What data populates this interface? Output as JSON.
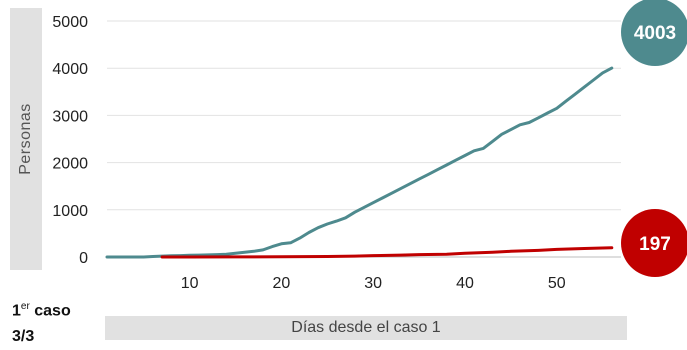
{
  "chart_data": {
    "type": "line",
    "ylabel": "Personas",
    "xlabel": "Días desde el caso 1",
    "ylim": [
      0,
      5000
    ],
    "xlim": [
      1,
      57
    ],
    "yticks": [
      "0",
      "1000",
      "2000",
      "3000",
      "4000",
      "5000"
    ],
    "xticks": [
      "10",
      "20",
      "30",
      "40",
      "50"
    ],
    "grid": "horizontal",
    "series": [
      {
        "color": "#4e8a8e",
        "end_label": "4003",
        "x": [
          1,
          2,
          3,
          4,
          5,
          6,
          7,
          8,
          9,
          10,
          11,
          12,
          13,
          14,
          15,
          16,
          17,
          18,
          19,
          20,
          21,
          22,
          23,
          24,
          25,
          26,
          27,
          28,
          29,
          30,
          31,
          32,
          33,
          34,
          35,
          36,
          37,
          38,
          39,
          40,
          41,
          42,
          43,
          44,
          45,
          46,
          47,
          48,
          49,
          50,
          51,
          52,
          53,
          54,
          55,
          56
        ],
        "values": [
          0,
          0,
          0,
          0,
          0,
          10,
          20,
          25,
          30,
          35,
          40,
          45,
          50,
          60,
          80,
          100,
          120,
          150,
          220,
          280,
          300,
          400,
          520,
          620,
          700,
          760,
          830,
          950,
          1050,
          1150,
          1250,
          1350,
          1450,
          1550,
          1650,
          1750,
          1850,
          1950,
          2050,
          2150,
          2250,
          2300,
          2450,
          2600,
          2700,
          2800,
          2850,
          2950,
          3050,
          3150,
          3300,
          3450,
          3600,
          3750,
          3900,
          4003
        ]
      },
      {
        "color": "#c00000",
        "end_label": "197",
        "x": [
          7,
          10,
          15,
          20,
          25,
          28,
          30,
          33,
          35,
          38,
          40,
          43,
          45,
          48,
          50,
          53,
          56
        ],
        "values": [
          0,
          0,
          2,
          5,
          10,
          20,
          30,
          40,
          50,
          60,
          80,
          100,
          120,
          140,
          160,
          180,
          197
        ]
      }
    ]
  },
  "annotation": {
    "first_case_prefix": "1",
    "first_case_sup": "er",
    "first_case_suffix": " caso",
    "first_case_date": "3/3"
  }
}
